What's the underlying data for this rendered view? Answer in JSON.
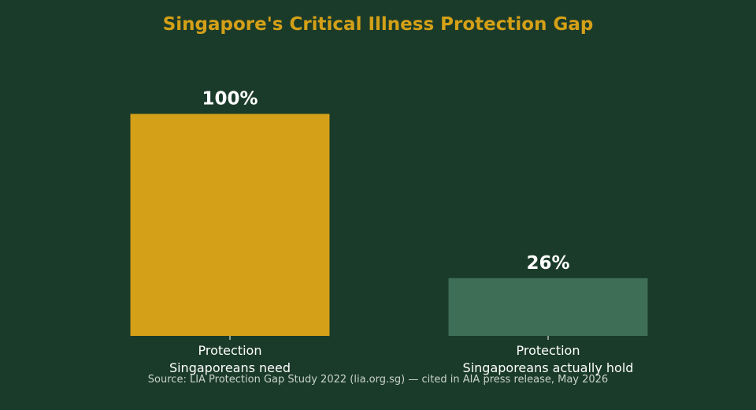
{
  "chart_data": {
    "type": "bar",
    "title": "Singapore's Critical Illness Protection Gap",
    "categories": [
      [
        "Protection",
        "Singaporeans need"
      ],
      [
        "Protection",
        "Singaporeans actually hold"
      ]
    ],
    "values": [
      100,
      26
    ],
    "value_labels": [
      "100%",
      "26%"
    ],
    "unit": "%",
    "ylim": [
      0,
      130
    ],
    "xlabel": "",
    "ylabel": "",
    "grid": false,
    "source": "Source: LIA Protection Gap Study 2022 (lia.org.sg) — cited in AIA press release, May 2026",
    "colors": {
      "background": "#1b3b2a",
      "title": "#d4a017",
      "bars": [
        "#d4a017",
        "#3f6e56"
      ],
      "value_label": "#ffffff",
      "tick_label": "#ffffff",
      "source": "#c9d2cc"
    }
  }
}
